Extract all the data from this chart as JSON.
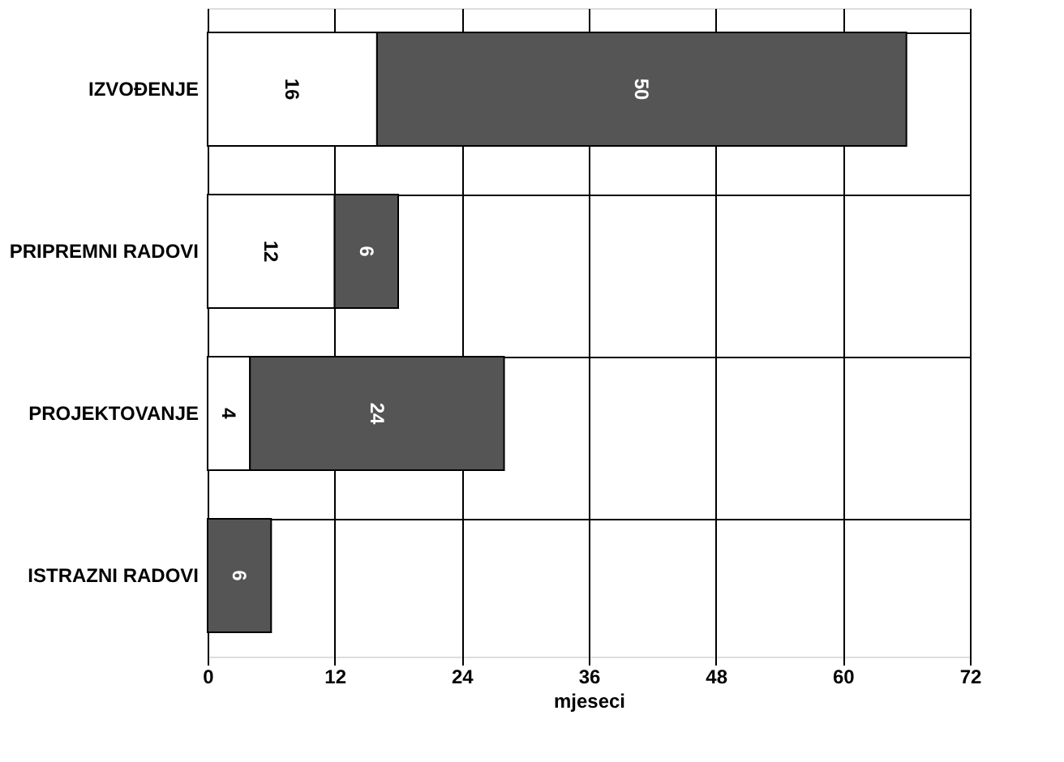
{
  "chart_data": {
    "type": "bar",
    "orientation": "horizontal",
    "stacked": true,
    "xlabel": "mjeseci",
    "categories": [
      "IZVOĐENJE",
      "PRIPREMNI RADOVI",
      "PROJEKTOVANJE",
      "ISTRAZNI RADOVI"
    ],
    "series": [
      {
        "color": "#ffffff",
        "values": [
          16,
          12,
          4,
          null
        ]
      },
      {
        "color": "#555555",
        "values": [
          50,
          6,
          24,
          6
        ]
      }
    ],
    "xlim": [
      0,
      72
    ],
    "xticks": [
      0,
      12,
      24,
      36,
      48,
      60,
      72
    ],
    "grid": true,
    "data_labels": true
  }
}
